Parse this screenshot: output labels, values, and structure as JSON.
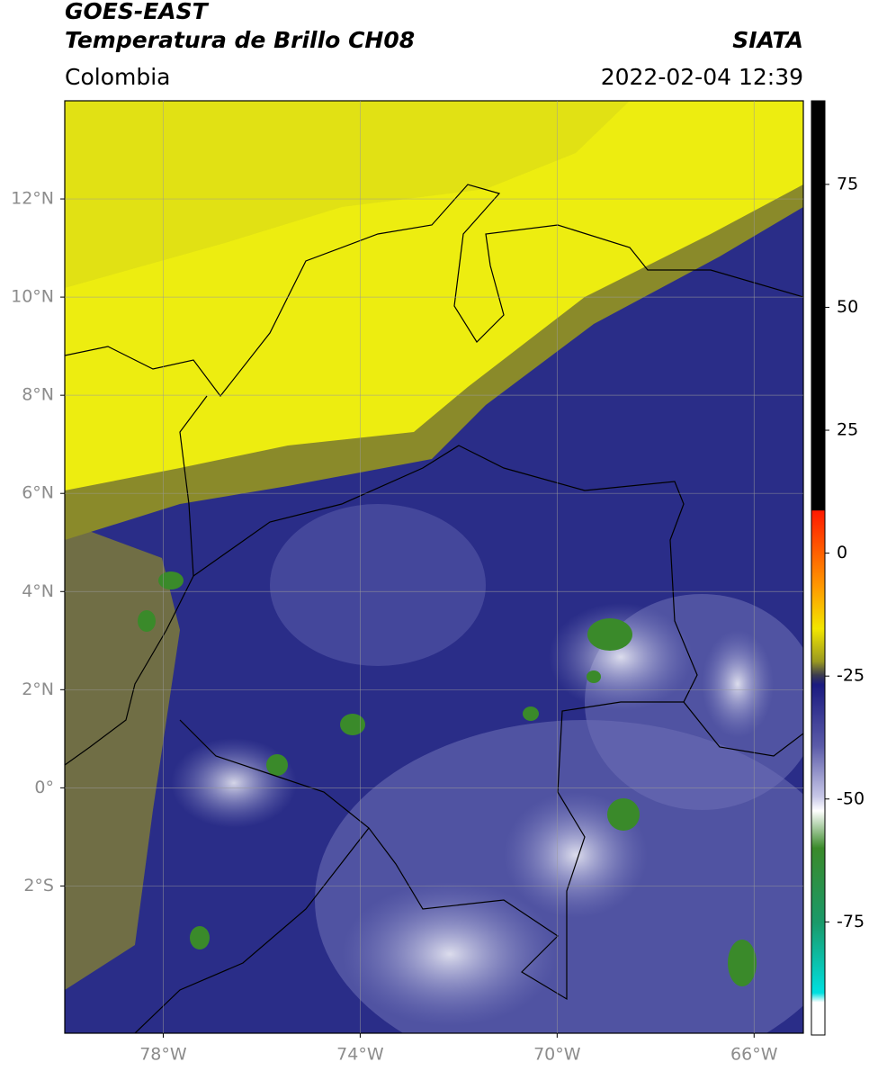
{
  "header": {
    "line1": "GOES-EAST",
    "line2": "Temperatura de Brillo CH08",
    "source": "SIATA",
    "region": "Colombia",
    "datetime": "2022-02-04 12:39"
  },
  "map": {
    "lat_lim": [
      -5,
      14
    ],
    "lon_lim": [
      -80,
      -65
    ],
    "lat_ticks": [
      {
        "value": 12,
        "label": "12°N"
      },
      {
        "value": 10,
        "label": "10°N"
      },
      {
        "value": 8,
        "label": "8°N"
      },
      {
        "value": 6,
        "label": "6°N"
      },
      {
        "value": 4,
        "label": "4°N"
      },
      {
        "value": 2,
        "label": "2°N"
      },
      {
        "value": 0,
        "label": "0°"
      },
      {
        "value": -2,
        "label": "2°S"
      }
    ],
    "lon_ticks": [
      {
        "value": -78,
        "label": "78°W"
      },
      {
        "value": -74,
        "label": "74°W"
      },
      {
        "value": -70,
        "label": "70°W"
      },
      {
        "value": -66,
        "label": "66°W"
      }
    ]
  },
  "colorbar": {
    "lim": [
      -98,
      92
    ],
    "ticks": [
      75,
      50,
      25,
      0,
      -25,
      -50,
      -75
    ]
  }
}
